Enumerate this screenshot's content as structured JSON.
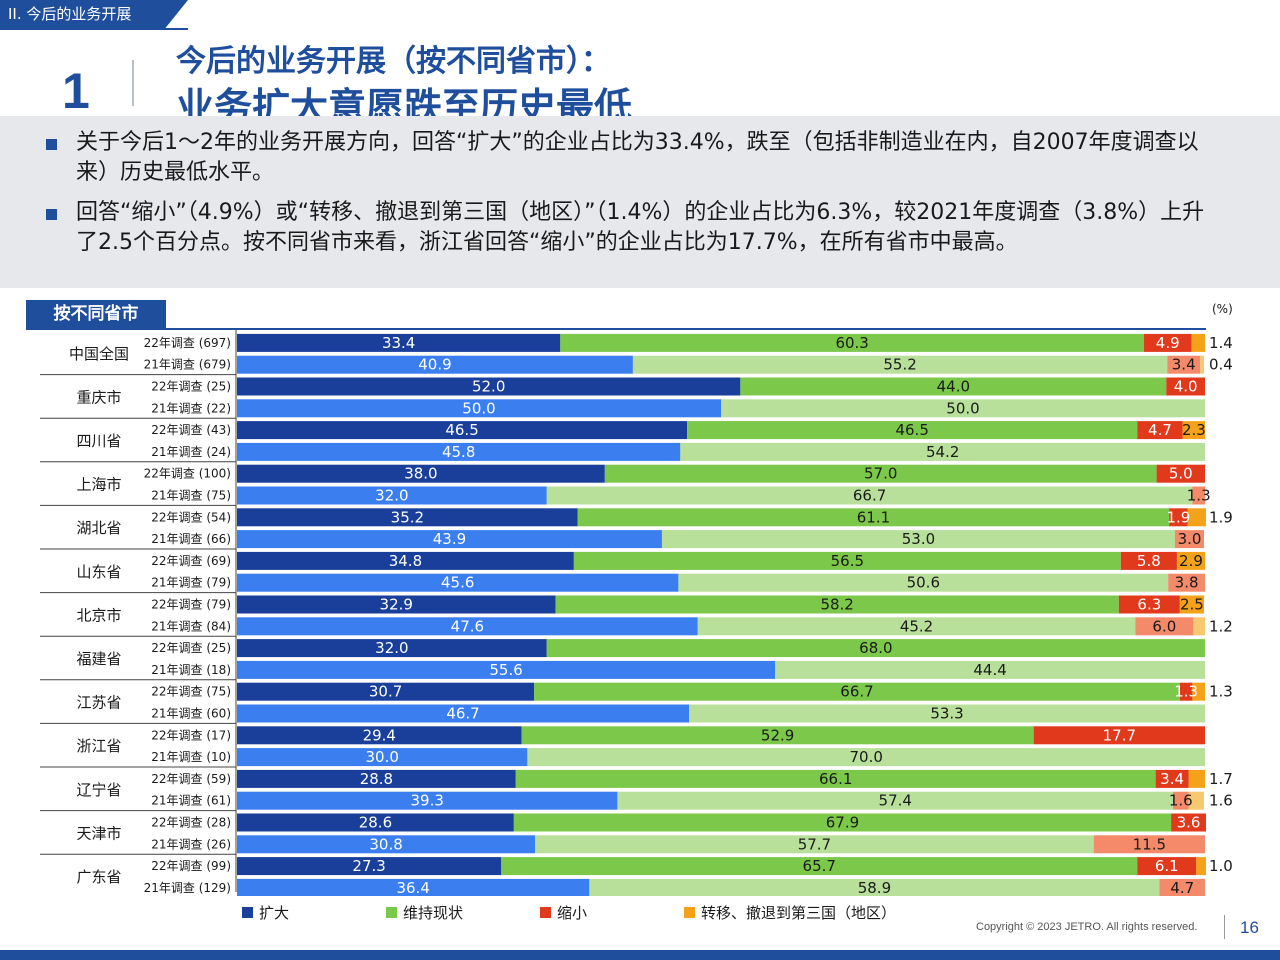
{
  "header": {
    "section": "II. 今后的业务开展",
    "number": "1",
    "title_line1": "今后的业务开展（按不同省市）：",
    "title_line2": "业务扩大意愿跌至历史最低"
  },
  "summary": [
    "关于今后1～2年的业务开展方向，回答“扩大”的企业占比为33.4%，跌至（包括非制造业在内，自2007年度调查以来）历史最低水平。",
    "回答“缩小”（4.9%）或“转移、撤退到第三国（地区）”（1.4%）的企业占比为6.3%，较2021年度调查（3.8%）上升了2.5个百分点。按不同省市来看，浙江省回答“缩小”的企业占比为17.7%，在所有省市中最高。"
  ],
  "region_tab": "按不同省市",
  "unit": "(%)",
  "colors": {
    "expand_22": "#1a3f9a",
    "expand_21": "#3a7ef0",
    "keep_22": "#7cc84a",
    "keep_21": "#b8e09a",
    "shrink_22": "#e0391b",
    "shrink_21": "#f48a6a",
    "move_22": "#f5a21b",
    "move_21": "#f8c870"
  },
  "legend": [
    {
      "label": "扩大",
      "color": "#1a3f9a"
    },
    {
      "label": "维持现状",
      "color": "#7cc84a"
    },
    {
      "label": "缩小",
      "color": "#e0391b"
    },
    {
      "label": "转移、撤退到第三国（地区）",
      "color": "#f5a21b"
    }
  ],
  "chart_data": {
    "type": "bar",
    "orientation": "horizontal-stacked-100",
    "series_names": [
      "扩大",
      "维持现状",
      "缩小",
      "转移、撤退到第三国（地区）"
    ],
    "groups": [
      {
        "name": "中国全国",
        "rows": [
          {
            "label": "22年调查 (697)",
            "values": [
              33.4,
              60.3,
              4.9,
              1.4
            ]
          },
          {
            "label": "21年调查 (679)",
            "values": [
              40.9,
              55.2,
              3.4,
              0.4
            ]
          }
        ]
      },
      {
        "name": "重庆市",
        "rows": [
          {
            "label": "22年调查 (25)",
            "values": [
              52.0,
              44.0,
              4.0,
              0
            ]
          },
          {
            "label": "21年调查 (22)",
            "values": [
              50.0,
              50.0,
              0,
              0
            ]
          }
        ]
      },
      {
        "name": "四川省",
        "rows": [
          {
            "label": "22年调查 (43)",
            "values": [
              46.5,
              46.5,
              4.7,
              2.3
            ]
          },
          {
            "label": "21年调查 (24)",
            "values": [
              45.8,
              54.2,
              0,
              0
            ]
          }
        ]
      },
      {
        "name": "上海市",
        "rows": [
          {
            "label": "22年调查 (100)",
            "values": [
              38.0,
              57.0,
              5.0,
              0
            ]
          },
          {
            "label": "21年调查 (75)",
            "values": [
              32.0,
              66.7,
              1.3,
              0
            ]
          }
        ]
      },
      {
        "name": "湖北省",
        "rows": [
          {
            "label": "22年调查 (54)",
            "values": [
              35.2,
              61.1,
              1.9,
              1.9
            ]
          },
          {
            "label": "21年调查 (66)",
            "values": [
              43.9,
              53.0,
              3.0,
              0
            ]
          }
        ]
      },
      {
        "name": "山东省",
        "rows": [
          {
            "label": "22年调查 (69)",
            "values": [
              34.8,
              56.5,
              5.8,
              2.9
            ]
          },
          {
            "label": "21年调查 (79)",
            "values": [
              45.6,
              50.6,
              3.8,
              0
            ]
          }
        ]
      },
      {
        "name": "北京市",
        "rows": [
          {
            "label": "22年调查 (79)",
            "values": [
              32.9,
              58.2,
              6.3,
              2.5
            ]
          },
          {
            "label": "21年调查 (84)",
            "values": [
              47.6,
              45.2,
              6.0,
              1.2
            ]
          }
        ]
      },
      {
        "name": "福建省",
        "rows": [
          {
            "label": "22年调查 (25)",
            "values": [
              32.0,
              68.0,
              0,
              0
            ]
          },
          {
            "label": "21年调查 (18)",
            "values": [
              55.6,
              44.4,
              0,
              0
            ]
          }
        ]
      },
      {
        "name": "江苏省",
        "rows": [
          {
            "label": "22年调查 (75)",
            "values": [
              30.7,
              66.7,
              1.3,
              1.3
            ]
          },
          {
            "label": "21年调查 (60)",
            "values": [
              46.7,
              53.3,
              0,
              0
            ]
          }
        ]
      },
      {
        "name": "浙江省",
        "rows": [
          {
            "label": "22年调查 (17)",
            "values": [
              29.4,
              52.9,
              17.7,
              0
            ]
          },
          {
            "label": "21年调查 (10)",
            "values": [
              30.0,
              70.0,
              0,
              0
            ]
          }
        ]
      },
      {
        "name": "辽宁省",
        "rows": [
          {
            "label": "22年调查 (59)",
            "values": [
              28.8,
              66.1,
              3.4,
              1.7
            ]
          },
          {
            "label": "21年调查 (61)",
            "values": [
              39.3,
              57.4,
              1.6,
              1.6
            ]
          }
        ]
      },
      {
        "name": "天津市",
        "rows": [
          {
            "label": "22年调查 (28)",
            "values": [
              28.6,
              67.9,
              3.6,
              0
            ]
          },
          {
            "label": "21年调查 (26)",
            "values": [
              30.8,
              57.7,
              11.5,
              0
            ]
          }
        ]
      },
      {
        "name": "广东省",
        "rows": [
          {
            "label": "22年调查 (99)",
            "values": [
              27.3,
              65.7,
              6.1,
              1.0
            ]
          },
          {
            "label": "21年调查 (129)",
            "values": [
              36.4,
              58.9,
              4.7,
              0
            ]
          }
        ]
      }
    ]
  },
  "footer": {
    "copyright": "Copyright © 2023 JETRO. All rights reserved.",
    "page": "16"
  }
}
